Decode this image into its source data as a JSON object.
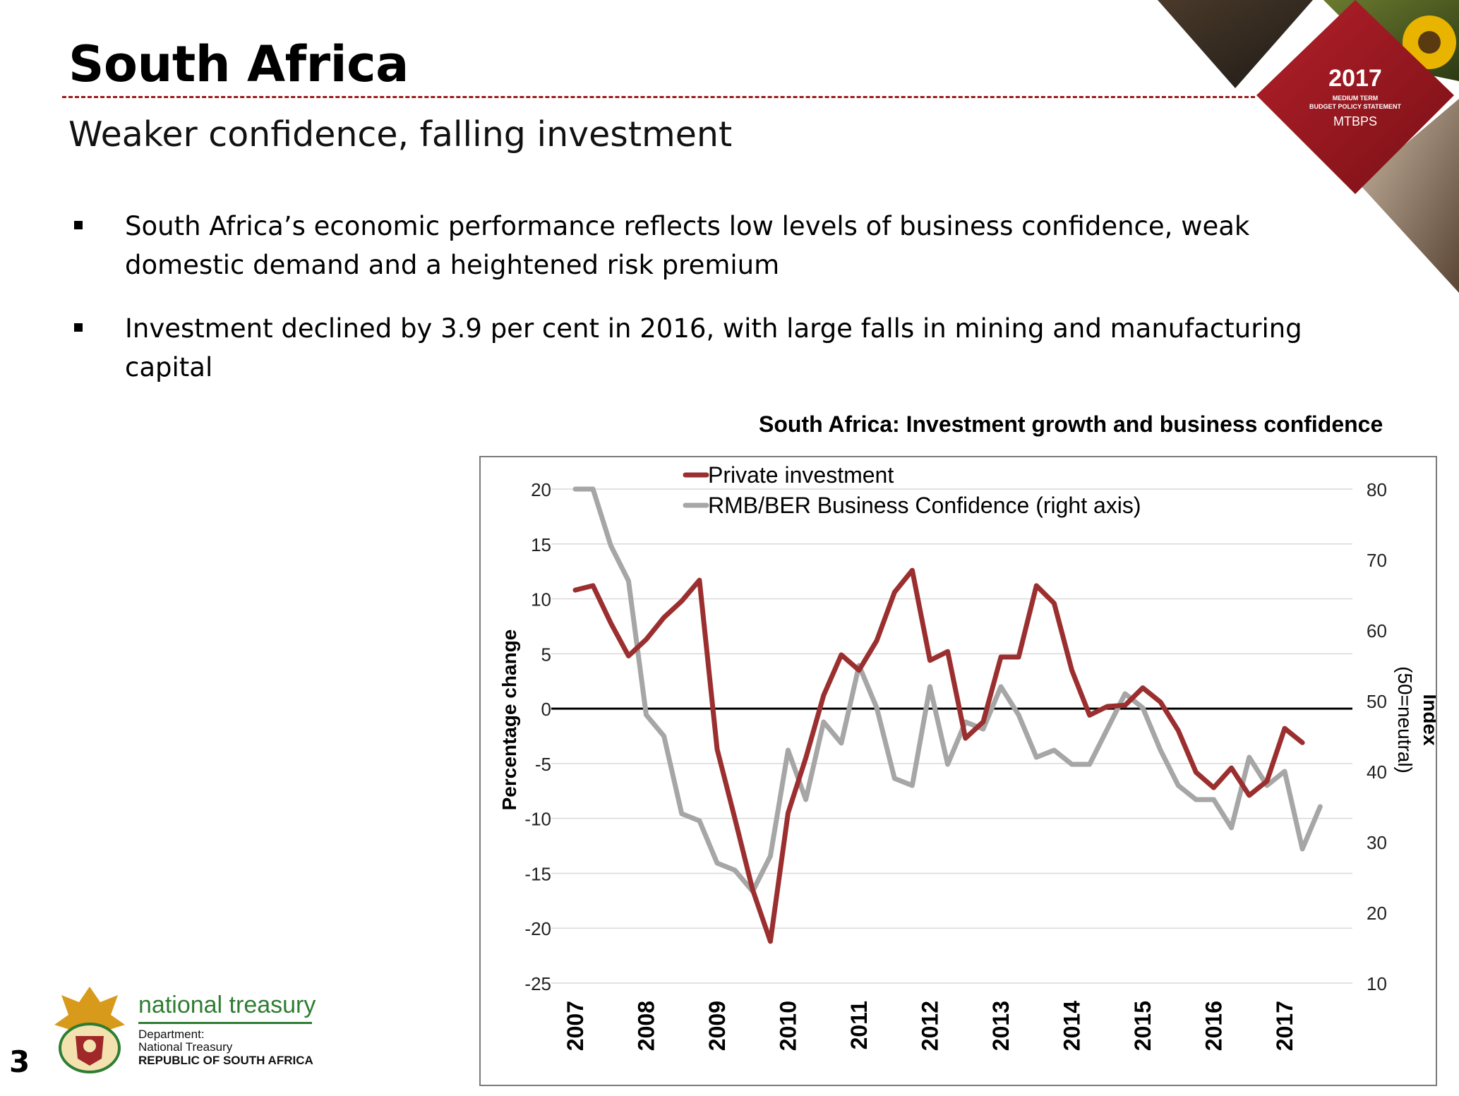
{
  "slide": {
    "title": "South Africa",
    "subtitle": "Weaker confidence, falling investment",
    "bullets": [
      "South Africa’s economic performance reflects low levels of business confidence, weak domestic demand and a heightened risk premium",
      "Investment declined by 3.9 per cent in 2016, with large falls in mining and manufacturing capital"
    ],
    "page_number": "3"
  },
  "branding": {
    "mtbps_year": "2017",
    "mtbps_line1": "MEDIUM TERM",
    "mtbps_line2": "BUDGET POLICY STATEMENT",
    "mtbps_abbr": "MTBPS",
    "treasury_name": "national treasury",
    "treasury_dept": "Department:",
    "treasury_sub": "National Treasury",
    "treasury_country": "REPUBLIC OF SOUTH AFRICA",
    "colors": {
      "brand_red": "#9b1c1c",
      "treasury_green": "#2e7d32"
    }
  },
  "chart_data": {
    "type": "line",
    "title": "South Africa: Investment growth and business confidence",
    "ylabel": "Percentage change",
    "y2label": "Index",
    "y2label_sub": "(50=neutral)",
    "ylim": [
      -25,
      20
    ],
    "yticks": [
      20,
      15,
      10,
      5,
      0,
      -5,
      -10,
      -15,
      -20,
      -25
    ],
    "y2lim": [
      10,
      80
    ],
    "y2ticks": [
      80,
      70,
      60,
      50,
      40,
      30,
      20,
      10
    ],
    "xticks": [
      "2007",
      "2008",
      "2009",
      "2010",
      "2011",
      "2012",
      "2013",
      "2014",
      "2015",
      "2016",
      "2017"
    ],
    "grid": true,
    "legend": "top-center",
    "series": [
      {
        "name": "Private investment",
        "axis": "left",
        "color": "#9b2f2f",
        "x": [
          "2007Q1",
          "2007Q2",
          "2007Q3",
          "2007Q4",
          "2008Q1",
          "2008Q2",
          "2008Q3",
          "2008Q4",
          "2009Q1",
          "2009Q2",
          "2009Q3",
          "2009Q4",
          "2010Q1",
          "2010Q2",
          "2010Q3",
          "2010Q4",
          "2011Q1",
          "2011Q2",
          "2011Q3",
          "2011Q4",
          "2012Q1",
          "2012Q2",
          "2012Q3",
          "2012Q4",
          "2013Q1",
          "2013Q2",
          "2013Q3",
          "2013Q4",
          "2014Q1",
          "2014Q2",
          "2014Q3",
          "2014Q4",
          "2015Q1",
          "2015Q2",
          "2015Q3",
          "2015Q4",
          "2016Q1",
          "2016Q2",
          "2016Q3",
          "2016Q4",
          "2017Q1",
          "2017Q2"
        ],
        "values": [
          10.8,
          11.2,
          7.8,
          4.8,
          6.3,
          8.3,
          9.8,
          11.7,
          -3.7,
          -10.0,
          -16.5,
          -21.2,
          -9.5,
          -4.5,
          1.2,
          4.9,
          3.5,
          6.2,
          10.6,
          12.6,
          4.4,
          5.2,
          -2.7,
          -1.2,
          4.7,
          4.7,
          11.2,
          9.6,
          3.5,
          -0.6,
          0.2,
          0.3,
          1.9,
          0.6,
          -2.0,
          -5.8,
          -7.2,
          -5.4,
          -7.9,
          -6.6,
          -1.8,
          -3.1
        ]
      },
      {
        "name": "RMB/BER Business Confidence (right axis)",
        "axis": "right",
        "color": "#a6a6a6",
        "x": [
          "2007Q1",
          "2007Q2",
          "2007Q3",
          "2007Q4",
          "2008Q1",
          "2008Q2",
          "2008Q3",
          "2008Q4",
          "2009Q1",
          "2009Q2",
          "2009Q3",
          "2009Q4",
          "2010Q1",
          "2010Q2",
          "2010Q3",
          "2010Q4",
          "2011Q1",
          "2011Q2",
          "2011Q3",
          "2011Q4",
          "2012Q1",
          "2012Q2",
          "2012Q3",
          "2012Q4",
          "2013Q1",
          "2013Q2",
          "2013Q3",
          "2013Q4",
          "2014Q1",
          "2014Q2",
          "2014Q3",
          "2014Q4",
          "2015Q1",
          "2015Q2",
          "2015Q3",
          "2015Q4",
          "2016Q1",
          "2016Q2",
          "2016Q3",
          "2016Q4",
          "2017Q1",
          "2017Q2",
          "2017Q3"
        ],
        "values": [
          80,
          80,
          72,
          67,
          48,
          45,
          34,
          33,
          27,
          26,
          23,
          28,
          43,
          36,
          47,
          44,
          55,
          49,
          39,
          38,
          52,
          41,
          47,
          46,
          52,
          48,
          42,
          43,
          41,
          41,
          46,
          51,
          49,
          43,
          38,
          36,
          36,
          32,
          42,
          38,
          40,
          29,
          35
        ]
      }
    ]
  }
}
